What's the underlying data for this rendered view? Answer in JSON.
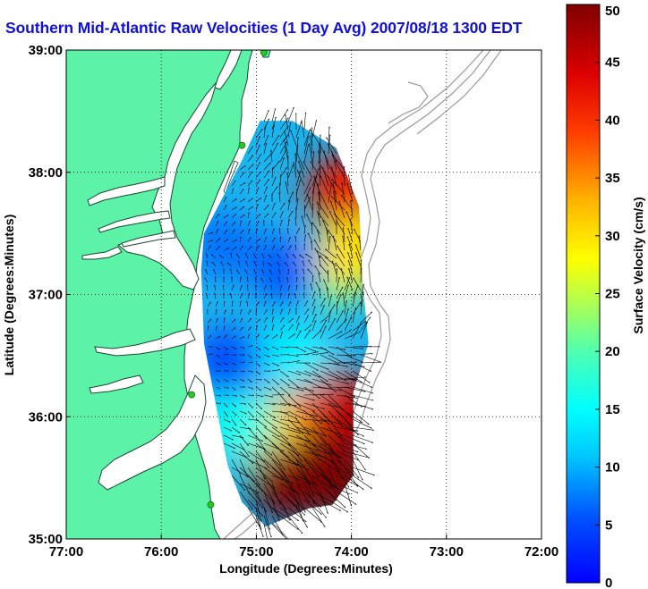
{
  "title": "Southern Mid-Atlantic Raw Velocities (1 Day Avg) 2007/08/18 1300 EDT",
  "colors": {
    "land": "#5cf2a8",
    "coast": "#1a4a33",
    "bathymetry": "#9a9a9a",
    "station": "#22cc22",
    "title": "#1010d8"
  },
  "chart_data": {
    "type": "heatmap",
    "title": "Southern Mid-Atlantic Raw Velocities (1 Day Avg) 2007/08/18 1300 EDT",
    "xlabel": "Longitude (Degrees:Minutes)",
    "ylabel": "Latitude (Degrees:Minutes)",
    "xlim": [
      -77,
      -72
    ],
    "ylim": [
      35,
      39
    ],
    "xticks": [
      "77:00",
      "76:00",
      "75:00",
      "74:00",
      "73:00",
      "72:00"
    ],
    "yticks": [
      "35:00",
      "36:00",
      "37:00",
      "38:00",
      "39:00"
    ],
    "grid": true,
    "colorbar": {
      "label": "Surface Velocity (cm/s)",
      "range": [
        0,
        50
      ],
      "ticks": [
        "0",
        "5",
        "10",
        "15",
        "20",
        "25",
        "30",
        "35",
        "40",
        "45",
        "50"
      ]
    },
    "coverage_polygon_lonlat": [
      [
        -74.96,
        38.42
      ],
      [
        -74.62,
        38.42
      ],
      [
        -74.16,
        38.2
      ],
      [
        -73.92,
        37.72
      ],
      [
        -73.88,
        37.1
      ],
      [
        -73.82,
        36.6
      ],
      [
        -73.98,
        36.2
      ],
      [
        -73.98,
        35.52
      ],
      [
        -74.2,
        35.28
      ],
      [
        -74.45,
        35.25
      ],
      [
        -74.9,
        35.1
      ],
      [
        -75.15,
        35.3
      ],
      [
        -75.3,
        35.6
      ],
      [
        -75.45,
        36.2
      ],
      [
        -75.55,
        36.6
      ],
      [
        -75.58,
        37.2
      ],
      [
        -75.55,
        37.5
      ],
      [
        -75.35,
        37.8
      ],
      [
        -75.15,
        38.1
      ]
    ],
    "velocity_hotspots_cm_s": [
      {
        "lon": -74.25,
        "lat": 35.65,
        "speed": 52
      },
      {
        "lon": -74.65,
        "lat": 35.45,
        "speed": 50
      },
      {
        "lon": -74.0,
        "lat": 36.05,
        "speed": 46
      },
      {
        "lon": -74.08,
        "lat": 37.85,
        "speed": 42
      },
      {
        "lon": -73.98,
        "lat": 37.35,
        "speed": 30
      }
    ],
    "velocity_lows_cm_s": [
      {
        "lon": -75.3,
        "lat": 36.45,
        "speed": 5
      },
      {
        "lon": -74.7,
        "lat": 37.2,
        "speed": 6
      },
      {
        "lon": -75.35,
        "lat": 37.4,
        "speed": 7
      }
    ],
    "stations_lonlat": [
      [
        -74.92,
        38.98
      ],
      [
        -75.15,
        38.22
      ],
      [
        -75.68,
        36.18
      ],
      [
        -75.48,
        35.28
      ]
    ]
  }
}
